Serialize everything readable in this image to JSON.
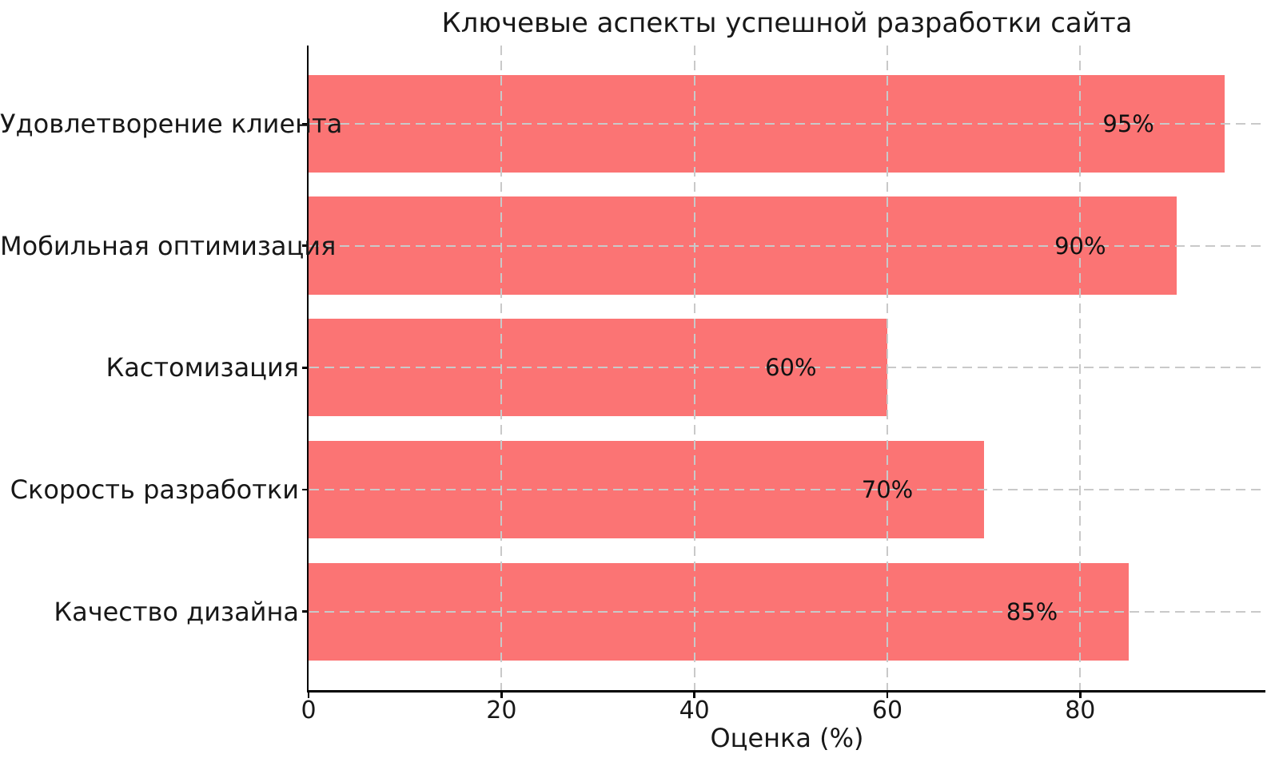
{
  "figure": {
    "background": "#ffffff"
  },
  "chart_data": {
    "type": "bar",
    "orientation": "horizontal",
    "title": "Ключевые аспекты успешной разработки сайта",
    "xlabel": "Оценка (%)",
    "ylabel": "",
    "categories": [
      "Удовлетворение клиента",
      "Мобильная оптимизация",
      "Кастомизация",
      "Скорость разработки",
      "Качество дизайна"
    ],
    "values": [
      95,
      90,
      60,
      70,
      85
    ],
    "bar_labels": [
      "95%",
      "90%",
      "60%",
      "70%",
      "85%"
    ],
    "x_ticks": [
      "0",
      "20",
      "40",
      "60",
      "80"
    ],
    "x_tick_values": [
      0,
      20,
      40,
      60,
      80
    ],
    "xlim": [
      0,
      99.2
    ],
    "grid": {
      "horizontal": true,
      "vertical": true,
      "style": "dashed",
      "color": "#c9c9c9"
    },
    "bar_color": "#fb7474",
    "axis_color": "#000000",
    "text_color": "#181818",
    "legend_position": "none"
  }
}
